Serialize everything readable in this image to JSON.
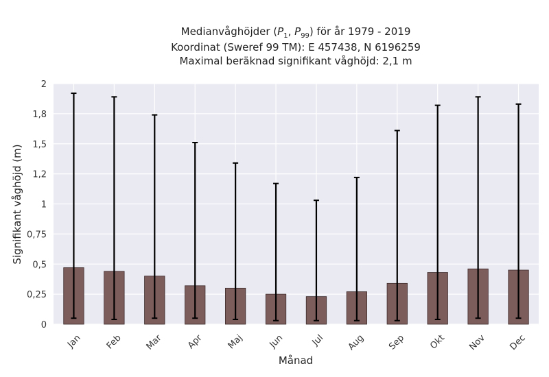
{
  "chart_data": {
    "type": "bar",
    "title_lines": [
      "Medianvåghöjder (P1, P99) för år 1979 - 2019",
      "Koordinat (Sweref 99 TM): E 457438, N 6196259",
      "Maximal beräknad signifikant våghöjd: 2,1 m"
    ],
    "xlabel": "Månad",
    "ylabel": "Signifikant våghöjd (m)",
    "categories": [
      "Jan",
      "Feb",
      "Mar",
      "Apr",
      "Maj",
      "Jun",
      "Jul",
      "Aug",
      "Sep",
      "Okt",
      "Nov",
      "Dec"
    ],
    "values": [
      0.47,
      0.44,
      0.4,
      0.32,
      0.3,
      0.25,
      0.23,
      0.27,
      0.34,
      0.43,
      0.46,
      0.45
    ],
    "error_low": [
      0.05,
      0.04,
      0.05,
      0.05,
      0.04,
      0.03,
      0.03,
      0.03,
      0.03,
      0.04,
      0.05,
      0.05
    ],
    "error_high": [
      1.92,
      1.89,
      1.74,
      1.51,
      1.34,
      1.17,
      1.03,
      1.22,
      1.61,
      1.82,
      1.89,
      1.83
    ],
    "yticks": [
      0,
      0.25,
      0.5,
      0.75,
      1,
      1.25,
      1.5,
      1.75,
      2
    ],
    "ytick_labels": [
      "0",
      "0,25",
      "0,5",
      "0,75",
      "1",
      "1,2",
      "1,5",
      "1,8",
      "2"
    ],
    "ylim": [
      0,
      2
    ],
    "grid": true,
    "colors": {
      "bar": "#7d5c5c",
      "bar_edge": "#3d2b2b",
      "errorbar": "#000000",
      "plot_bg": "#eaeaf2",
      "grid": "#ffffff"
    }
  }
}
